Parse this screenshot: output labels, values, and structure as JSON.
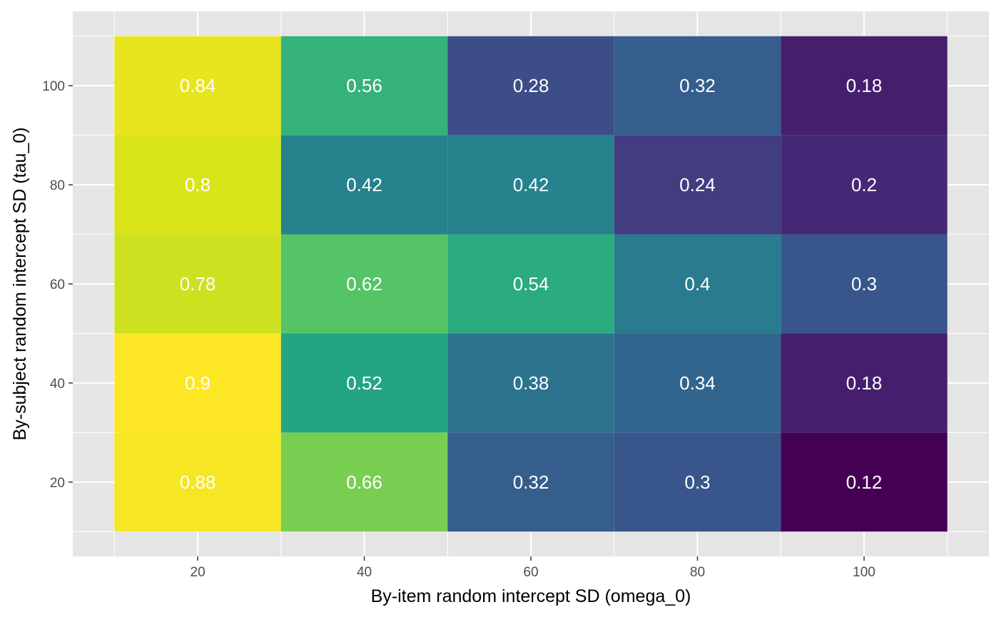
{
  "chart_data": {
    "type": "heatmap",
    "title": "",
    "xlabel": "By-item random intercept SD (omega_0)",
    "ylabel": "By-subject random intercept SD (tau_0)",
    "x": [
      20,
      40,
      60,
      80,
      100
    ],
    "y": [
      20,
      40,
      60,
      80,
      100
    ],
    "xlim": [
      5,
      115
    ],
    "ylim": [
      5,
      115
    ],
    "tile_width": 20,
    "tile_height": 20,
    "values": [
      [
        0.88,
        0.66,
        0.32,
        0.3,
        0.12
      ],
      [
        0.9,
        0.52,
        0.38,
        0.34,
        0.18
      ],
      [
        0.78,
        0.62,
        0.54,
        0.4,
        0.3
      ],
      [
        0.8,
        0.42,
        0.42,
        0.24,
        0.2
      ],
      [
        0.84,
        0.56,
        0.28,
        0.32,
        0.18
      ]
    ],
    "labels": [
      [
        "0.88",
        "0.66",
        "0.32",
        "0.3",
        "0.12"
      ],
      [
        "0.9",
        "0.52",
        "0.38",
        "0.34",
        "0.18"
      ],
      [
        "0.78",
        "0.62",
        "0.54",
        "0.4",
        "0.3"
      ],
      [
        "0.8",
        "0.42",
        "0.42",
        "0.24",
        "0.2"
      ],
      [
        "0.84",
        "0.56",
        "0.28",
        "0.32",
        "0.18"
      ]
    ],
    "colormap": "viridis",
    "legend": "none",
    "grid": true,
    "colors": {
      "panel_background": "#e5e5e5",
      "grid": "#ffffff",
      "cell_text": "#ffffff"
    }
  }
}
